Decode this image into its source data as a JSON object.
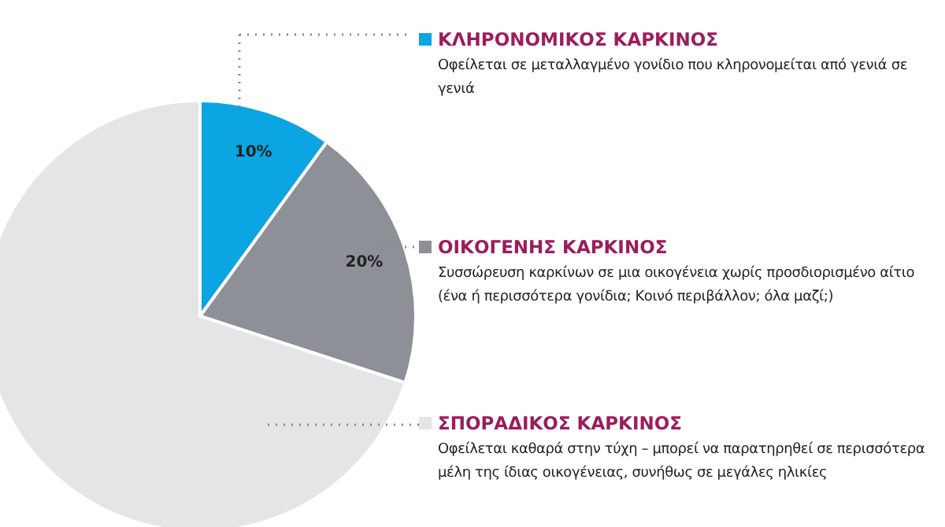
{
  "chart_data": {
    "type": "pie",
    "categories": [
      "ΚΛΗΡΟΝΟΜΙΚΟΣ ΚΑΡΚΙΝΟΣ",
      "ΟΙΚΟΓΕΝΗΣ ΚΑΡΚΙΝΟΣ",
      "ΣΠΟΡΑΔΙΚΟΣ ΚΑΡΚΙΝΟΣ"
    ],
    "values": [
      10,
      20,
      70
    ],
    "colors": [
      "#0aa5e2",
      "#8d9197",
      "#e4e5e7"
    ],
    "value_labels": [
      "10%",
      "20%",
      null
    ],
    "legend": "right",
    "annotations": [
      "Οφείλεται σε μεταλλαγμένο γονίδιο που κληρονομείται από γενιά σε γενιά",
      "Συσσώρευση καρκίνων σε μια οικογένεια χωρίς προσδιορισμένο αίτιο (ένα ή περισσότερα γονίδια; Κοινό περιβάλλον; όλα μαζί;)",
      "Οφείλεται καθαρά στην τύχη – μπορεί να παρατηρηθεί σε περισσότερα μέλη της ίδιας οικογένειας, συνήθως σε μεγάλες ηλικίες"
    ]
  }
}
